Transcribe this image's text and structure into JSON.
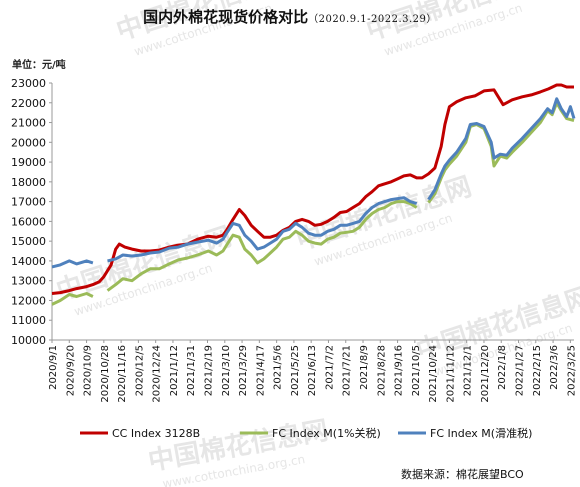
{
  "header": {
    "title": "国内外棉花现货价格对比",
    "subtitle": "（2020.9.1-2022.3.29）",
    "unit_label": "单位：元/吨"
  },
  "footer": {
    "source": "数据来源：棉花展望BCO"
  },
  "watermark": {
    "text": "中国棉花信息网",
    "url": "www.cottonchina.org.cn"
  },
  "chart_data": {
    "type": "line",
    "title": "国内外棉花现货价格对比",
    "ylabel": "",
    "xlabel": "",
    "ylim": [
      10000,
      23000
    ],
    "yticks": [
      10000,
      11000,
      12000,
      13000,
      14000,
      15000,
      16000,
      17000,
      18000,
      19000,
      20000,
      21000,
      22000,
      23000
    ],
    "grid": false,
    "legend_position": "bottom",
    "x_ticks": [
      "2020/9/1",
      "2020/9/20",
      "2020/10/9",
      "2020/10/28",
      "2020/11/16",
      "2020/12/5",
      "2020/12/24",
      "2021/1/12",
      "2021/1/31",
      "2021/2/19",
      "2021/3/10",
      "2021/3/29",
      "2021/4/17",
      "2021/5/6",
      "2021/5/25",
      "2021/6/13",
      "2021/7/2",
      "2021/7/21",
      "2021/8/9",
      "2021/8/28",
      "2021/9/16",
      "2021/10/5",
      "2021/10/24",
      "2021/11/12",
      "2021/12/1",
      "2021/12/20",
      "2022/1/8",
      "2022/1/27",
      "2022/2/15",
      "2022/3/6",
      "2022/3/25"
    ],
    "series": [
      {
        "name": "CC Index 3128B",
        "color": "#c00000",
        "points": [
          [
            "2020-09-01",
            12350
          ],
          [
            "2020-09-10",
            12400
          ],
          [
            "2020-09-20",
            12500
          ],
          [
            "2020-09-28",
            12600
          ],
          [
            "2020-10-09",
            12700
          ],
          [
            "2020-10-16",
            12800
          ],
          [
            "2020-10-23",
            12950
          ],
          [
            "2020-10-28",
            13200
          ],
          [
            "2020-11-05",
            13800
          ],
          [
            "2020-11-10",
            14600
          ],
          [
            "2020-11-14",
            14850
          ],
          [
            "2020-11-20",
            14700
          ],
          [
            "2020-11-28",
            14600
          ],
          [
            "2020-12-08",
            14500
          ],
          [
            "2020-12-18",
            14500
          ],
          [
            "2020-12-28",
            14550
          ],
          [
            "2021-01-08",
            14700
          ],
          [
            "2021-01-18",
            14800
          ],
          [
            "2021-01-28",
            14850
          ],
          [
            "2021-02-08",
            15100
          ],
          [
            "2021-02-20",
            15250
          ],
          [
            "2021-03-01",
            15200
          ],
          [
            "2021-03-08",
            15300
          ],
          [
            "2021-03-12",
            15550
          ],
          [
            "2021-03-19",
            16100
          ],
          [
            "2021-03-26",
            16600
          ],
          [
            "2021-04-01",
            16300
          ],
          [
            "2021-04-08",
            15800
          ],
          [
            "2021-04-15",
            15500
          ],
          [
            "2021-04-22",
            15200
          ],
          [
            "2021-04-29",
            15200
          ],
          [
            "2021-05-06",
            15300
          ],
          [
            "2021-05-13",
            15550
          ],
          [
            "2021-05-20",
            15700
          ],
          [
            "2021-05-27",
            16000
          ],
          [
            "2021-06-03",
            16100
          ],
          [
            "2021-06-10",
            16000
          ],
          [
            "2021-06-17",
            15800
          ],
          [
            "2021-06-24",
            15850
          ],
          [
            "2021-07-01",
            16000
          ],
          [
            "2021-07-08",
            16200
          ],
          [
            "2021-07-15",
            16450
          ],
          [
            "2021-07-22",
            16500
          ],
          [
            "2021-07-29",
            16700
          ],
          [
            "2021-08-05",
            16900
          ],
          [
            "2021-08-12",
            17250
          ],
          [
            "2021-08-19",
            17500
          ],
          [
            "2021-08-26",
            17800
          ],
          [
            "2021-09-02",
            17900
          ],
          [
            "2021-09-09",
            18000
          ],
          [
            "2021-09-16",
            18150
          ],
          [
            "2021-09-23",
            18300
          ],
          [
            "2021-09-30",
            18350
          ],
          [
            "2021-10-07",
            18200
          ],
          [
            "2021-10-13",
            18200
          ],
          [
            "2021-10-20",
            18400
          ],
          [
            "2021-10-27",
            18700
          ],
          [
            "2021-11-03",
            19800
          ],
          [
            "2021-11-07",
            20900
          ],
          [
            "2021-11-12",
            21800
          ],
          [
            "2021-11-20",
            22050
          ],
          [
            "2021-11-30",
            22250
          ],
          [
            "2021-12-10",
            22350
          ],
          [
            "2021-12-20",
            22600
          ],
          [
            "2021-12-31",
            22650
          ],
          [
            "2022-01-10",
            21900
          ],
          [
            "2022-01-20",
            22150
          ],
          [
            "2022-01-31",
            22300
          ],
          [
            "2022-02-10",
            22400
          ],
          [
            "2022-02-20",
            22550
          ],
          [
            "2022-03-01",
            22700
          ],
          [
            "2022-03-10",
            22900
          ],
          [
            "2022-03-15",
            22900
          ],
          [
            "2022-03-21",
            22800
          ],
          [
            "2022-03-29",
            22800
          ]
        ]
      },
      {
        "name": "FC Index M(1%关税)",
        "color": "#9bbb59",
        "points": [
          [
            "2020-09-01",
            11800
          ],
          [
            "2020-09-10",
            12000
          ],
          [
            "2020-09-20",
            12300
          ],
          [
            "2020-09-28",
            12200
          ],
          [
            "2020-10-09",
            12350
          ],
          [
            "2020-10-16",
            12200
          ],
          [
            "2020-10-20",
            null
          ],
          [
            "2020-11-01",
            12500
          ],
          [
            "2020-11-10",
            12800
          ],
          [
            "2020-11-18",
            13100
          ],
          [
            "2020-11-28",
            13000
          ],
          [
            "2020-12-08",
            13350
          ],
          [
            "2020-12-18",
            13600
          ],
          [
            "2020-12-28",
            13600
          ],
          [
            "2021-01-08",
            13850
          ],
          [
            "2021-01-18",
            14050
          ],
          [
            "2021-01-28",
            14150
          ],
          [
            "2021-02-08",
            14300
          ],
          [
            "2021-02-20",
            14500
          ],
          [
            "2021-03-01",
            14300
          ],
          [
            "2021-03-08",
            14500
          ],
          [
            "2021-03-12",
            14800
          ],
          [
            "2021-03-19",
            15300
          ],
          [
            "2021-03-26",
            15200
          ],
          [
            "2021-04-01",
            14600
          ],
          [
            "2021-04-08",
            14300
          ],
          [
            "2021-04-15",
            13900
          ],
          [
            "2021-04-22",
            14100
          ],
          [
            "2021-04-29",
            14400
          ],
          [
            "2021-05-06",
            14700
          ],
          [
            "2021-05-13",
            15100
          ],
          [
            "2021-05-20",
            15200
          ],
          [
            "2021-05-27",
            15500
          ],
          [
            "2021-06-03",
            15300
          ],
          [
            "2021-06-10",
            15000
          ],
          [
            "2021-06-17",
            14900
          ],
          [
            "2021-06-24",
            14850
          ],
          [
            "2021-07-01",
            15100
          ],
          [
            "2021-07-08",
            15200
          ],
          [
            "2021-07-15",
            15400
          ],
          [
            "2021-07-22",
            15450
          ],
          [
            "2021-07-29",
            15500
          ],
          [
            "2021-08-05",
            15700
          ],
          [
            "2021-08-12",
            16100
          ],
          [
            "2021-08-19",
            16400
          ],
          [
            "2021-08-26",
            16600
          ],
          [
            "2021-09-02",
            16700
          ],
          [
            "2021-09-09",
            16900
          ],
          [
            "2021-09-16",
            17000
          ],
          [
            "2021-09-23",
            17000
          ],
          [
            "2021-09-30",
            16900
          ],
          [
            "2021-10-07",
            16700
          ],
          [
            "2021-10-12",
            null
          ],
          [
            "2021-10-20",
            16950
          ],
          [
            "2021-10-27",
            17400
          ],
          [
            "2021-11-03",
            18200
          ],
          [
            "2021-11-07",
            18600
          ],
          [
            "2021-11-12",
            18900
          ],
          [
            "2021-11-20",
            19300
          ],
          [
            "2021-11-30",
            20000
          ],
          [
            "2021-12-05",
            20800
          ],
          [
            "2021-12-12",
            20900
          ],
          [
            "2021-12-20",
            20700
          ],
          [
            "2021-12-28",
            19800
          ],
          [
            "2021-12-31",
            18800
          ],
          [
            "2022-01-07",
            19300
          ],
          [
            "2022-01-14",
            19200
          ],
          [
            "2022-01-20",
            19500
          ],
          [
            "2022-01-31",
            20000
          ],
          [
            "2022-02-10",
            20500
          ],
          [
            "2022-02-20",
            21000
          ],
          [
            "2022-02-28",
            21600
          ],
          [
            "2022-03-05",
            21400
          ],
          [
            "2022-03-10",
            22000
          ],
          [
            "2022-03-15",
            21600
          ],
          [
            "2022-03-21",
            21200
          ],
          [
            "2022-03-29",
            21100
          ]
        ]
      },
      {
        "name": "FC Index M(滑准税)",
        "color": "#4f81bd",
        "points": [
          [
            "2020-09-01",
            13700
          ],
          [
            "2020-09-10",
            13800
          ],
          [
            "2020-09-20",
            14000
          ],
          [
            "2020-09-28",
            13850
          ],
          [
            "2020-10-09",
            14000
          ],
          [
            "2020-10-16",
            13900
          ],
          [
            "2020-10-20",
            null
          ],
          [
            "2020-11-01",
            14000
          ],
          [
            "2020-11-10",
            14100
          ],
          [
            "2020-11-18",
            14300
          ],
          [
            "2020-11-28",
            14250
          ],
          [
            "2020-12-08",
            14300
          ],
          [
            "2020-12-18",
            14400
          ],
          [
            "2020-12-28",
            14450
          ],
          [
            "2021-01-08",
            14650
          ],
          [
            "2021-01-18",
            14700
          ],
          [
            "2021-01-28",
            14850
          ],
          [
            "2021-02-08",
            14950
          ],
          [
            "2021-02-20",
            15050
          ],
          [
            "2021-03-01",
            14900
          ],
          [
            "2021-03-08",
            15100
          ],
          [
            "2021-03-12",
            15400
          ],
          [
            "2021-03-19",
            15900
          ],
          [
            "2021-03-26",
            15800
          ],
          [
            "2021-04-01",
            15300
          ],
          [
            "2021-04-08",
            15000
          ],
          [
            "2021-04-15",
            14600
          ],
          [
            "2021-04-22",
            14700
          ],
          [
            "2021-04-29",
            14900
          ],
          [
            "2021-05-06",
            15100
          ],
          [
            "2021-05-13",
            15500
          ],
          [
            "2021-05-20",
            15600
          ],
          [
            "2021-05-27",
            15900
          ],
          [
            "2021-06-03",
            15700
          ],
          [
            "2021-06-10",
            15400
          ],
          [
            "2021-06-17",
            15300
          ],
          [
            "2021-06-24",
            15300
          ],
          [
            "2021-07-01",
            15500
          ],
          [
            "2021-07-08",
            15600
          ],
          [
            "2021-07-15",
            15800
          ],
          [
            "2021-07-22",
            15800
          ],
          [
            "2021-07-29",
            15900
          ],
          [
            "2021-08-05",
            16000
          ],
          [
            "2021-08-12",
            16400
          ],
          [
            "2021-08-19",
            16700
          ],
          [
            "2021-08-26",
            16900
          ],
          [
            "2021-09-02",
            17000
          ],
          [
            "2021-09-09",
            17100
          ],
          [
            "2021-09-16",
            17150
          ],
          [
            "2021-09-23",
            17200
          ],
          [
            "2021-09-30",
            17000
          ],
          [
            "2021-10-07",
            16900
          ],
          [
            "2021-10-12",
            null
          ],
          [
            "2021-10-20",
            17100
          ],
          [
            "2021-10-27",
            17600
          ],
          [
            "2021-11-03",
            18400
          ],
          [
            "2021-11-07",
            18800
          ],
          [
            "2021-11-12",
            19100
          ],
          [
            "2021-11-20",
            19500
          ],
          [
            "2021-11-30",
            20200
          ],
          [
            "2021-12-05",
            20900
          ],
          [
            "2021-12-12",
            20950
          ],
          [
            "2021-12-20",
            20800
          ],
          [
            "2021-12-28",
            20000
          ],
          [
            "2021-12-31",
            19200
          ],
          [
            "2022-01-07",
            19400
          ],
          [
            "2022-01-14",
            19350
          ],
          [
            "2022-01-20",
            19700
          ],
          [
            "2022-01-31",
            20200
          ],
          [
            "2022-02-10",
            20700
          ],
          [
            "2022-02-20",
            21200
          ],
          [
            "2022-02-28",
            21700
          ],
          [
            "2022-03-05",
            21500
          ],
          [
            "2022-03-10",
            22200
          ],
          [
            "2022-03-15",
            21700
          ],
          [
            "2022-03-21",
            21300
          ],
          [
            "2022-03-25",
            21800
          ],
          [
            "2022-03-29",
            21200
          ]
        ]
      }
    ]
  }
}
